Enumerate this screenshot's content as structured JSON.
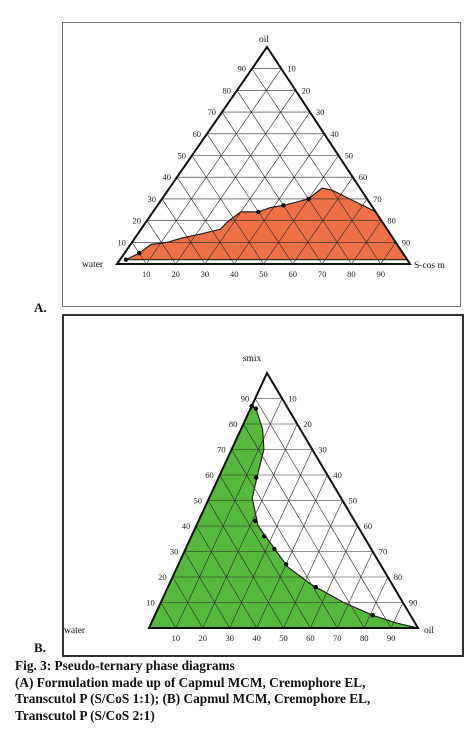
{
  "panels": [
    {
      "label": "A.",
      "vertices": {
        "top": "oil",
        "left": "water",
        "right": "S-cos m"
      },
      "ticks": [
        "10",
        "20",
        "30",
        "40",
        "50",
        "60",
        "70",
        "80",
        "90"
      ],
      "region_color": "#f07045",
      "region_points": [
        [
          0.02,
          0.96,
          0.02
        ],
        [
          0.05,
          0.9,
          0.05
        ],
        [
          0.09,
          0.84,
          0.07
        ],
        [
          0.1,
          0.78,
          0.12
        ],
        [
          0.12,
          0.72,
          0.16
        ],
        [
          0.14,
          0.64,
          0.22
        ],
        [
          0.16,
          0.57,
          0.27
        ],
        [
          0.2,
          0.52,
          0.28
        ],
        [
          0.24,
          0.46,
          0.3
        ],
        [
          0.24,
          0.4,
          0.36
        ],
        [
          0.26,
          0.35,
          0.39
        ],
        [
          0.27,
          0.3,
          0.43
        ],
        [
          0.3,
          0.2,
          0.5
        ],
        [
          0.35,
          0.13,
          0.52
        ],
        [
          0.34,
          0.1,
          0.56
        ],
        [
          0.3,
          0.06,
          0.64
        ],
        [
          0.24,
          0.0,
          0.76
        ],
        [
          0.02,
          0.0,
          0.98
        ]
      ],
      "markers": [
        [
          0.02,
          0.96,
          0.02
        ],
        [
          0.05,
          0.9,
          0.05
        ],
        [
          0.24,
          0.4,
          0.36
        ],
        [
          0.27,
          0.3,
          0.43
        ],
        [
          0.3,
          0.2,
          0.5
        ]
      ]
    },
    {
      "label": "B.",
      "vertices": {
        "top": "smix",
        "left": "water",
        "right": "oil"
      },
      "ticks": [
        "10",
        "20",
        "30",
        "40",
        "50",
        "60",
        "70",
        "80",
        "90"
      ],
      "region_color": "#56b83c",
      "region_points": [
        [
          0.0,
          1.0,
          0.0
        ],
        [
          0.87,
          0.13,
          0.0
        ],
        [
          0.86,
          0.12,
          0.02
        ],
        [
          0.78,
          0.14,
          0.08
        ],
        [
          0.7,
          0.18,
          0.12
        ],
        [
          0.6,
          0.26,
          0.14
        ],
        [
          0.51,
          0.33,
          0.16
        ],
        [
          0.4,
          0.37,
          0.23
        ],
        [
          0.32,
          0.36,
          0.32
        ],
        [
          0.24,
          0.35,
          0.41
        ],
        [
          0.17,
          0.3,
          0.53
        ],
        [
          0.1,
          0.22,
          0.68
        ],
        [
          0.05,
          0.14,
          0.81
        ],
        [
          0.02,
          0.07,
          0.91
        ],
        [
          0.0,
          0.0,
          1.0
        ]
      ],
      "markers": [
        [
          0.87,
          0.13,
          0.0
        ],
        [
          0.86,
          0.12,
          0.02
        ],
        [
          0.59,
          0.27,
          0.14
        ],
        [
          0.42,
          0.37,
          0.21
        ],
        [
          0.36,
          0.37,
          0.27
        ],
        [
          0.31,
          0.36,
          0.33
        ],
        [
          0.25,
          0.35,
          0.4
        ],
        [
          0.16,
          0.29,
          0.55
        ],
        [
          0.05,
          0.14,
          0.81
        ]
      ]
    }
  ],
  "caption": {
    "title": "Fig. 3: Pseudo-ternary phase diagrams",
    "line1": "(A) Formulation made up of Capmul MCM, Cremophore EL,",
    "line2": "Transcutol P (S/CoS 1:1); (B) Capmul MCM, Cremophore EL,",
    "line3": "Transcutol P (S/CoS 2:1)"
  }
}
